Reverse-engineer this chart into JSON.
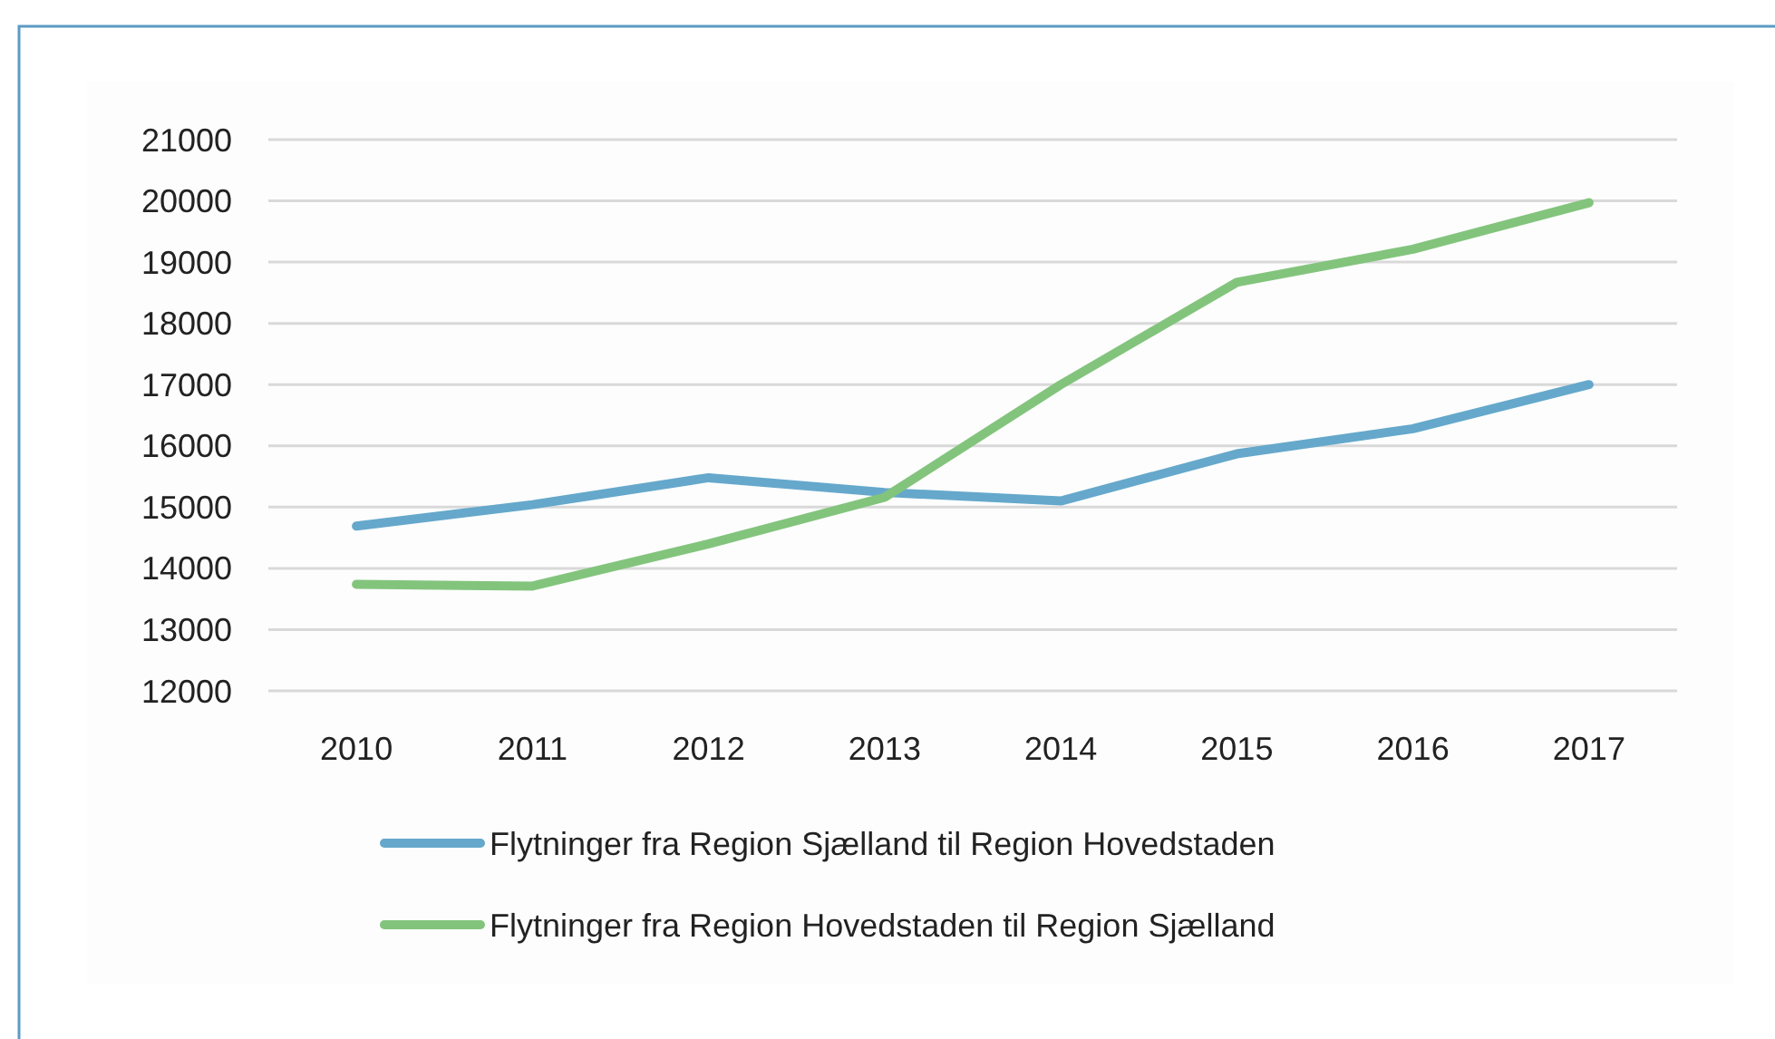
{
  "chart_data": {
    "type": "line",
    "categories": [
      "2010",
      "2011",
      "2012",
      "2013",
      "2014",
      "2015",
      "2016",
      "2017"
    ],
    "series": [
      {
        "name": "Flytninger fra Region Sjælland til Region Hovedstaden",
        "color": "#65a8cb",
        "values": [
          14690,
          15040,
          15480,
          15240,
          15100,
          15870,
          16280,
          17000
        ]
      },
      {
        "name": "Flytninger fra Region Hovedstaden til Region Sjælland",
        "color": "#83c47d",
        "values": [
          13740,
          13710,
          14400,
          15160,
          17000,
          18670,
          19210,
          19970
        ]
      }
    ],
    "ylim": [
      12000,
      21000
    ],
    "yticks": [
      12000,
      13000,
      14000,
      15000,
      16000,
      17000,
      18000,
      19000,
      20000,
      21000
    ],
    "grid": "y",
    "legend": "bottom",
    "marker": "none",
    "line_style": "solid"
  }
}
